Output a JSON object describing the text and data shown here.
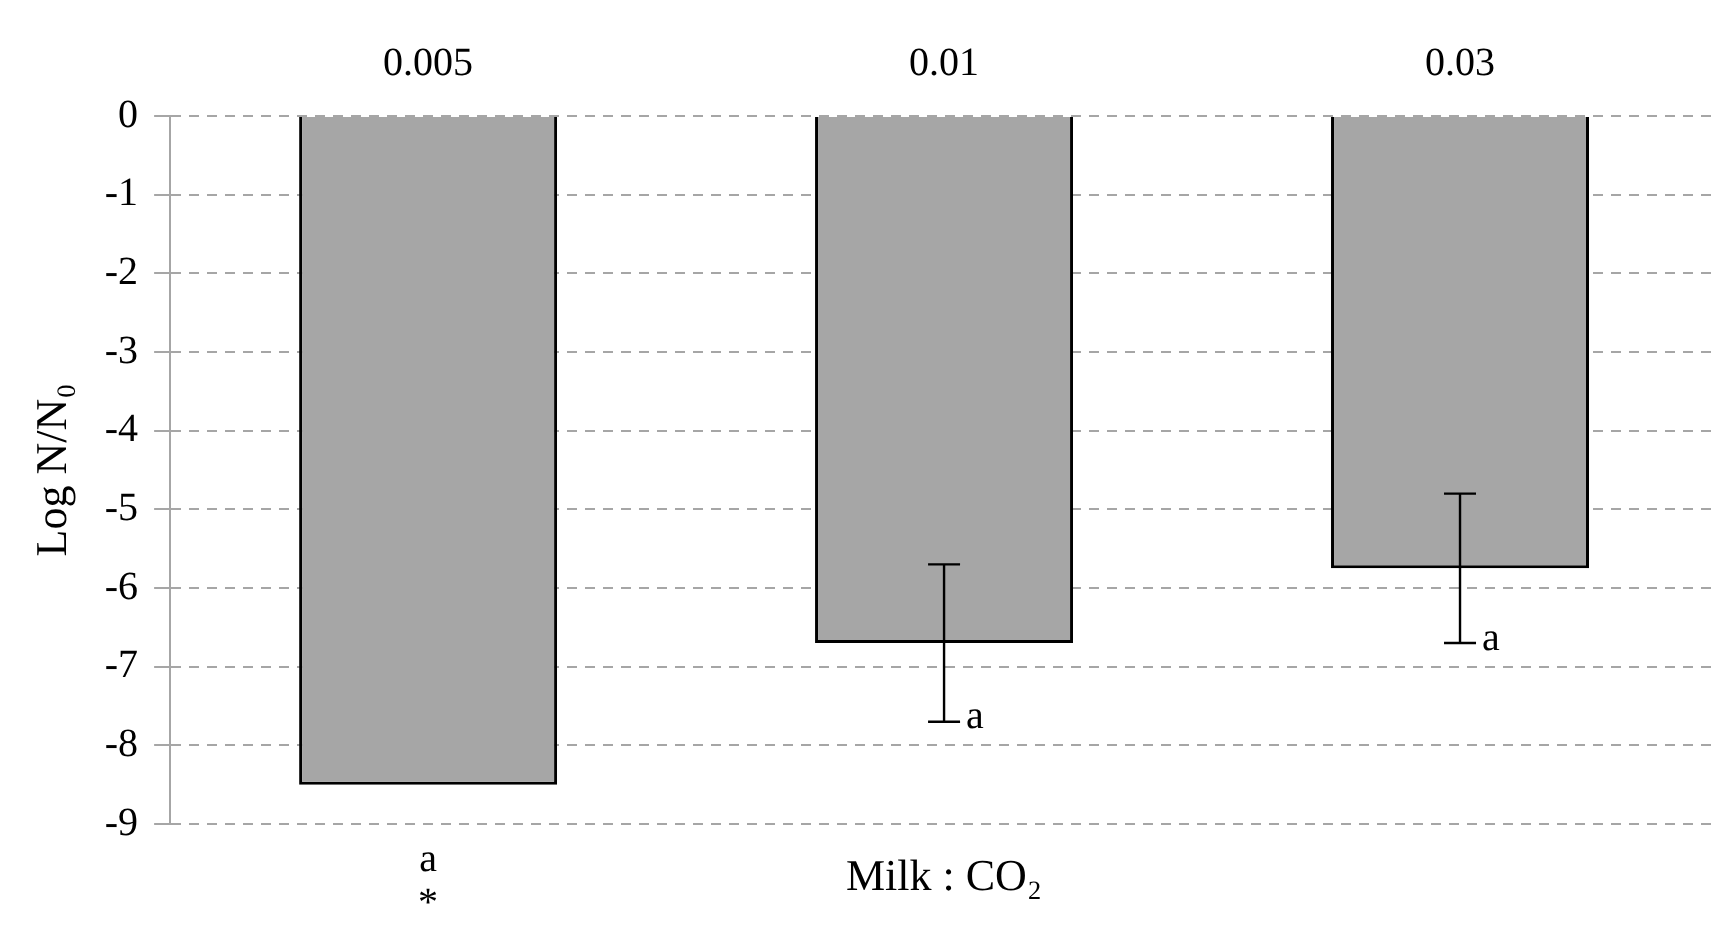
{
  "chart_data": {
    "type": "bar",
    "xlabel": "Milk : CO₂",
    "ylabel": "Log N/N₀",
    "categories": [
      "0.005",
      "0.01",
      "0.03"
    ],
    "values": [
      -8.5,
      -6.7,
      -5.75
    ],
    "errors": [
      null,
      1,
      0.95
    ],
    "color": "#a6a6a6",
    "ylim": [
      -9,
      0
    ],
    "yticks": [
      0,
      -1,
      -2,
      -3,
      -4,
      -5,
      -6,
      -7,
      -8,
      -9
    ],
    "grid": "y",
    "annotations": [
      "a",
      "*",
      {
        "text": "a",
        "x": "0.01",
        "y": -7.7
      },
      {
        "text": "a",
        "x": "0.03",
        "y": -6.7
      }
    ]
  }
}
